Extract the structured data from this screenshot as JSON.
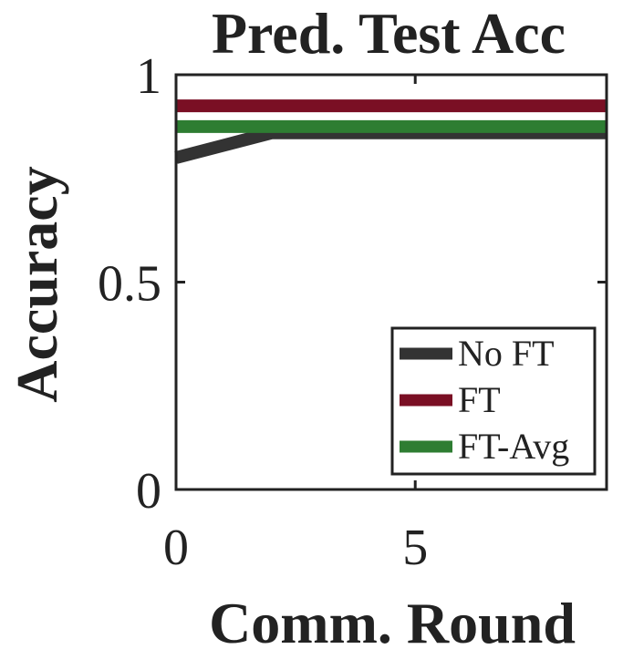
{
  "chart_data": {
    "type": "line",
    "title": "Pred. Test Acc",
    "xlabel": "Comm. Round",
    "ylabel": "Accuracy",
    "xlim": [
      0,
      9
    ],
    "ylim": [
      0,
      1
    ],
    "xticks": [
      0,
      5
    ],
    "yticks": [
      0,
      0.5,
      1
    ],
    "xtick_labels": [
      "0",
      "5"
    ],
    "ytick_labels": [
      "0",
      "0.5",
      "1"
    ],
    "grid": false,
    "legend_position": "bottom-right",
    "series": [
      {
        "name": "No FT",
        "color": "#333333",
        "x": [
          0,
          1,
          2,
          3,
          4,
          5,
          6,
          7,
          8,
          9
        ],
        "y": [
          0.8,
          0.83,
          0.86,
          0.86,
          0.86,
          0.86,
          0.86,
          0.86,
          0.86,
          0.86
        ]
      },
      {
        "name": "FT",
        "color": "#7a0f24",
        "x": [
          0,
          1,
          2,
          3,
          4,
          5,
          6,
          7,
          8,
          9
        ],
        "y": [
          0.925,
          0.925,
          0.925,
          0.925,
          0.925,
          0.925,
          0.925,
          0.925,
          0.925,
          0.925
        ]
      },
      {
        "name": "FT-Avg",
        "color": "#2e7d32",
        "x": [
          0,
          1,
          2,
          3,
          4,
          5,
          6,
          7,
          8,
          9
        ],
        "y": [
          0.875,
          0.875,
          0.875,
          0.875,
          0.875,
          0.875,
          0.875,
          0.875,
          0.875,
          0.875
        ]
      }
    ]
  }
}
